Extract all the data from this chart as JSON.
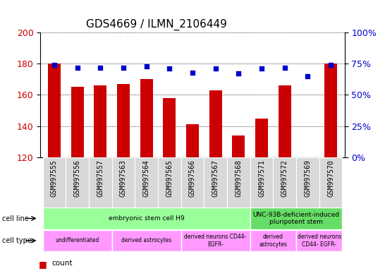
{
  "title": "GDS4669 / ILMN_2106449",
  "samples": [
    "GSM997555",
    "GSM997556",
    "GSM997557",
    "GSM997563",
    "GSM997564",
    "GSM997565",
    "GSM997566",
    "GSM997567",
    "GSM997568",
    "GSM997571",
    "GSM997572",
    "GSM997569",
    "GSM997570"
  ],
  "counts": [
    180,
    165,
    166,
    167,
    170,
    158,
    141,
    163,
    134,
    145,
    166,
    120,
    180
  ],
  "percentiles": [
    74,
    72,
    72,
    72,
    73,
    71,
    68,
    71,
    67,
    71,
    72,
    65,
    74
  ],
  "ylim_left": [
    120,
    200
  ],
  "ylim_right": [
    0,
    100
  ],
  "yticks_left": [
    120,
    140,
    160,
    180,
    200
  ],
  "yticks_right": [
    0,
    25,
    50,
    75,
    100
  ],
  "bar_color": "#cc0000",
  "dot_color": "#0000cc",
  "cell_line_groups": [
    {
      "label": "embryonic stem cell H9",
      "start": 0,
      "end": 9,
      "color": "#99ff99"
    },
    {
      "label": "UNC-93B-deficient-induced\npluripotent stem",
      "start": 9,
      "end": 13,
      "color": "#66dd66"
    }
  ],
  "cell_type_groups": [
    {
      "label": "undifferentiated",
      "start": 0,
      "end": 3,
      "color": "#ff99ff"
    },
    {
      "label": "derived astrocytes",
      "start": 3,
      "end": 6,
      "color": "#ff99ff"
    },
    {
      "label": "derived neurons CD44-\nEGFR-",
      "start": 6,
      "end": 9,
      "color": "#ff99ff"
    },
    {
      "label": "derived\nastrocytes",
      "start": 9,
      "end": 11,
      "color": "#ff99ff"
    },
    {
      "label": "derived neurons\nCD44- EGFR-",
      "start": 11,
      "end": 13,
      "color": "#ff99ff"
    }
  ],
  "title_fontsize": 11,
  "tick_label_fontsize": 7,
  "annotation_fontsize": 7,
  "legend_fontsize": 7.5
}
